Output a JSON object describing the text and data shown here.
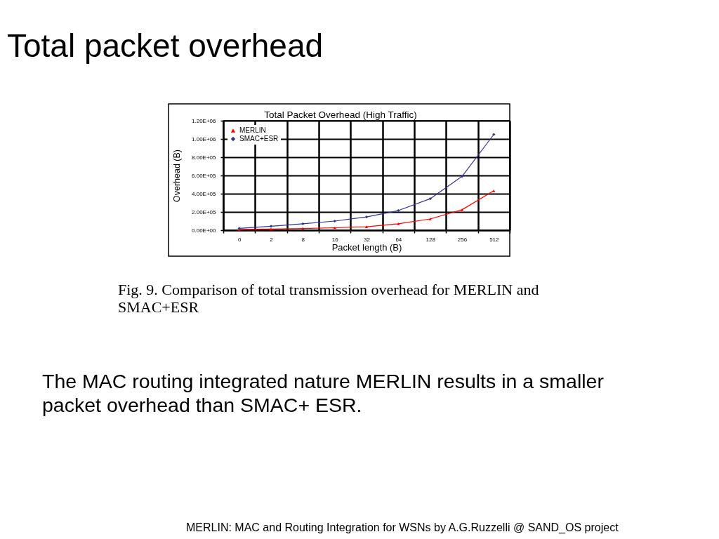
{
  "chart_data": {
    "type": "line",
    "title": "Total packet overhead",
    "subtitle": "Total Packet Overhead (High Traffic)",
    "xlabel": "Packet length (B)",
    "ylabel": "Overhead (B)",
    "categories": [
      "0",
      "2",
      "8",
      "16",
      "32",
      "64",
      "128",
      "256",
      "512"
    ],
    "series": [
      {
        "name": "MERLIN",
        "color": "#ff0000",
        "marker": "triangle",
        "values": [
          8000,
          12000,
          18000,
          27000,
          38000,
          70000,
          123000,
          224000,
          432000
        ]
      },
      {
        "name": "SMAC+ESR",
        "color": "#333399",
        "marker": "diamond",
        "values": [
          20000,
          44000,
          70000,
          100000,
          145000,
          215000,
          345000,
          590000,
          1050000
        ]
      }
    ],
    "ylim": [
      0,
      1200000
    ],
    "yticks": [
      {
        "value": 0,
        "label": "0.00E+00"
      },
      {
        "value": 200000,
        "label": "2.00E+05"
      },
      {
        "value": 400000,
        "label": "4.00E+05"
      },
      {
        "value": 600000,
        "label": "6.00E+05"
      },
      {
        "value": 800000,
        "label": "8.00E+05"
      },
      {
        "value": 1000000,
        "label": "1.00E+06"
      },
      {
        "value": 1200000,
        "label": "1.20E+06"
      }
    ],
    "grid": true,
    "legend": "top left",
    "line_style": "solid",
    "annotations": [
      "Fig. 9. Comparison of total transmission overhead for MERLIN and SMAC+ESR",
      "The MAC routing integrated nature MERLIN results in a smaller packet overhead than SMAC+ ESR.",
      "MERLIN: MAC and Routing Integration for WSNs by A.G.Ruzzelli @ SAND_OS project"
    ]
  }
}
